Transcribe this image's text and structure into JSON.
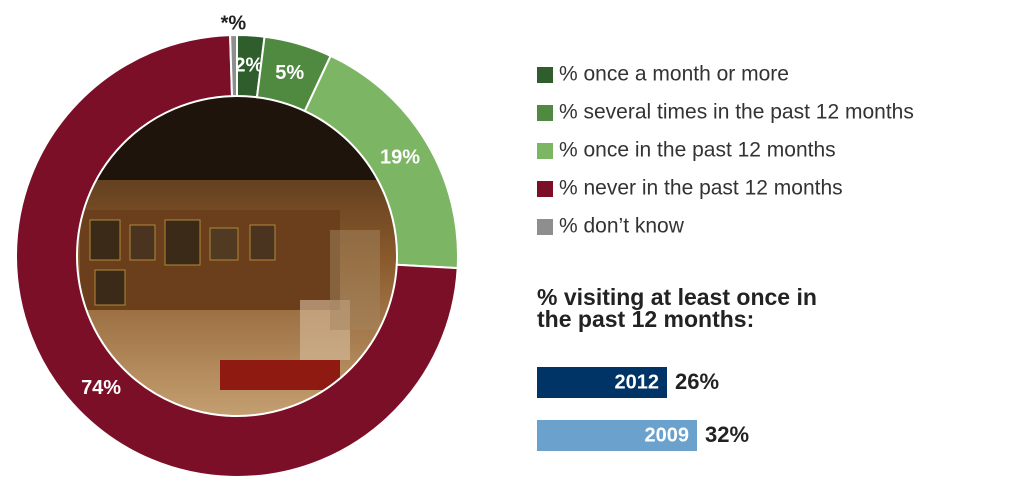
{
  "chart_data": [
    {
      "type": "pie",
      "categories": [
        "% once a month or more",
        "% several times in the past 12 months",
        "% once in the past 12 months",
        "% never in the past 12 months",
        "% don’t know"
      ],
      "values": [
        2,
        5,
        19,
        74,
        0.5
      ],
      "value_labels": [
        "2%",
        "5%",
        "19%",
        "74%",
        "*%"
      ],
      "colors": [
        "#2f5d2b",
        "#4f8a40",
        "#7cb664",
        "#7b0f28",
        "#8e8e8e"
      ]
    },
    {
      "type": "bar",
      "title": "% visiting at least once in the past 12 months:",
      "categories": [
        "2012",
        "2009"
      ],
      "values": [
        26,
        32
      ],
      "value_labels": [
        "26%",
        "32%"
      ],
      "colors": [
        "#003366",
        "#6aa1cd"
      ]
    }
  ]
}
